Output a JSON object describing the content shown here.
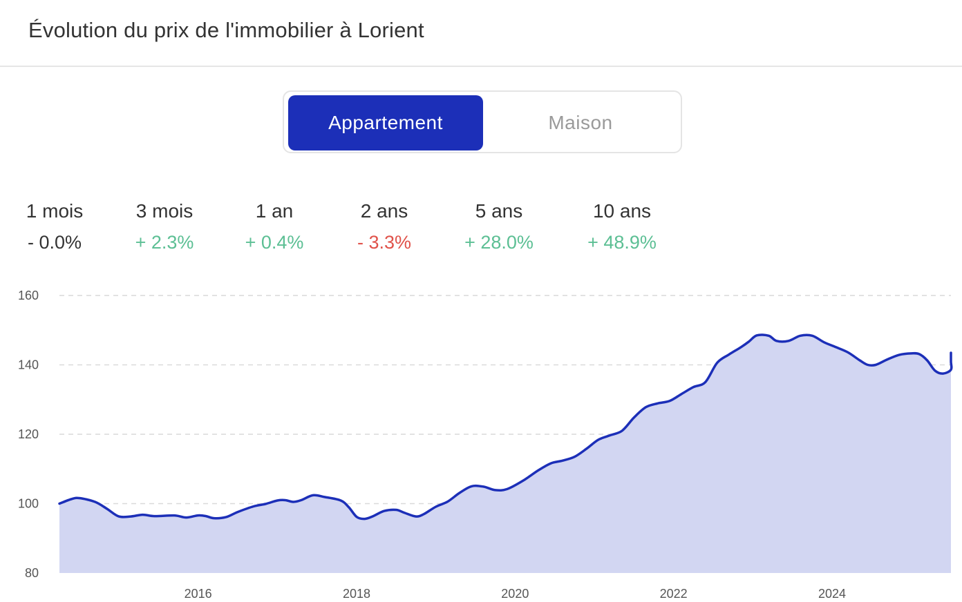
{
  "page": {
    "title": "Évolution du prix de l'immobilier à Lorient"
  },
  "toggle": {
    "options": [
      "Appartement",
      "Maison"
    ],
    "selected": "Appartement",
    "active_color": "#1c2fb8"
  },
  "stats": [
    {
      "label": "1 mois",
      "value": "- 0.0%",
      "trend": "neutral"
    },
    {
      "label": "3 mois",
      "value": "+ 2.3%",
      "trend": "up"
    },
    {
      "label": "1 an",
      "value": "+ 0.4%",
      "trend": "up"
    },
    {
      "label": "2 ans",
      "value": "- 3.3%",
      "trend": "down"
    },
    {
      "label": "5 ans",
      "value": "+ 28.0%",
      "trend": "up"
    },
    {
      "label": "10 ans",
      "value": "+ 48.9%",
      "trend": "up"
    }
  ],
  "colors": {
    "neutral": "#333333",
    "up": "#5cbf94",
    "down": "#e0524a",
    "line": "#1c2fb8",
    "area": "#d2d6f2",
    "grid": "#d9d9d9"
  },
  "chart_data": {
    "type": "area",
    "title": "",
    "xlabel": "",
    "ylabel": "",
    "xlim": [
      2014.25,
      2025.5
    ],
    "ylim": [
      80,
      160
    ],
    "yticks": [
      80,
      100,
      120,
      140,
      160
    ],
    "xticks": [
      2016,
      2018,
      2020,
      2022,
      2024
    ],
    "grid": "horizontal dashed",
    "series": [
      {
        "values": [
          [
            2014.25,
            100.0
          ],
          [
            2014.4,
            101.3
          ],
          [
            2014.5,
            101.6
          ],
          [
            2014.7,
            100.5
          ],
          [
            2014.85,
            98.5
          ],
          [
            2015.0,
            96.3
          ],
          [
            2015.15,
            96.3
          ],
          [
            2015.3,
            96.8
          ],
          [
            2015.45,
            96.4
          ],
          [
            2015.7,
            96.6
          ],
          [
            2015.85,
            96.0
          ],
          [
            2016.0,
            96.6
          ],
          [
            2016.1,
            96.4
          ],
          [
            2016.2,
            95.8
          ],
          [
            2016.35,
            96.1
          ],
          [
            2016.5,
            97.6
          ],
          [
            2016.7,
            99.2
          ],
          [
            2016.85,
            99.9
          ],
          [
            2017.0,
            100.9
          ],
          [
            2017.1,
            101.0
          ],
          [
            2017.2,
            100.5
          ],
          [
            2017.3,
            101.0
          ],
          [
            2017.45,
            102.4
          ],
          [
            2017.6,
            101.9
          ],
          [
            2017.8,
            100.9
          ],
          [
            2017.9,
            99.0
          ],
          [
            2018.0,
            96.2
          ],
          [
            2018.1,
            95.6
          ],
          [
            2018.2,
            96.3
          ],
          [
            2018.35,
            97.9
          ],
          [
            2018.5,
            98.2
          ],
          [
            2018.6,
            97.4
          ],
          [
            2018.75,
            96.3
          ],
          [
            2018.85,
            97.0
          ],
          [
            2019.0,
            99.1
          ],
          [
            2019.15,
            100.6
          ],
          [
            2019.3,
            103.1
          ],
          [
            2019.45,
            105.0
          ],
          [
            2019.6,
            104.9
          ],
          [
            2019.75,
            103.9
          ],
          [
            2019.9,
            104.2
          ],
          [
            2020.1,
            106.6
          ],
          [
            2020.3,
            109.7
          ],
          [
            2020.45,
            111.6
          ],
          [
            2020.6,
            112.4
          ],
          [
            2020.75,
            113.5
          ],
          [
            2020.9,
            115.8
          ],
          [
            2021.05,
            118.4
          ],
          [
            2021.2,
            119.7
          ],
          [
            2021.35,
            121.0
          ],
          [
            2021.5,
            124.8
          ],
          [
            2021.65,
            127.8
          ],
          [
            2021.8,
            128.9
          ],
          [
            2021.95,
            129.6
          ],
          [
            2022.1,
            131.6
          ],
          [
            2022.25,
            133.6
          ],
          [
            2022.4,
            135.0
          ],
          [
            2022.55,
            140.6
          ],
          [
            2022.7,
            143.0
          ],
          [
            2022.85,
            145.1
          ],
          [
            2022.95,
            146.7
          ],
          [
            2023.05,
            148.5
          ],
          [
            2023.2,
            148.4
          ],
          [
            2023.3,
            146.9
          ],
          [
            2023.45,
            146.9
          ],
          [
            2023.6,
            148.4
          ],
          [
            2023.75,
            148.4
          ],
          [
            2023.9,
            146.5
          ],
          [
            2024.05,
            145.1
          ],
          [
            2024.2,
            143.6
          ],
          [
            2024.35,
            141.3
          ],
          [
            2024.45,
            140.0
          ],
          [
            2024.55,
            140.0
          ],
          [
            2024.7,
            141.6
          ],
          [
            2024.85,
            142.9
          ],
          [
            2025.0,
            143.3
          ],
          [
            2025.1,
            143.1
          ],
          [
            2025.2,
            141.3
          ],
          [
            2025.3,
            138.3
          ],
          [
            2025.4,
            137.5
          ],
          [
            2025.55,
            138.6
          ],
          [
            2025.7,
            140.9
          ],
          [
            2025.8,
            143.3
          ],
          [
            2025.9,
            143.3
          ]
        ]
      }
    ]
  }
}
